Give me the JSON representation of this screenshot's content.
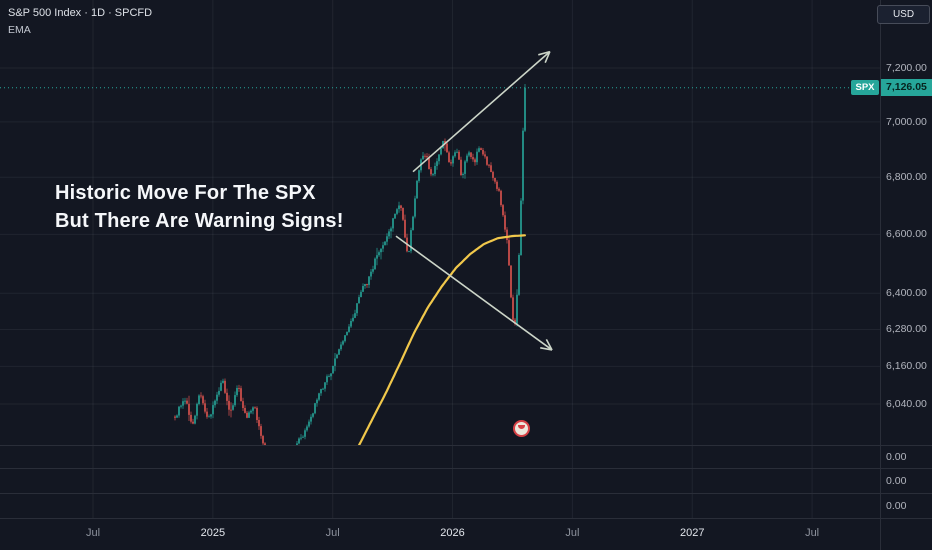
{
  "header": {
    "symbol_title": "S&P 500 Index · 1D · SPCFD",
    "indicator_label": "EMA",
    "currency_button": "USD"
  },
  "annotation": {
    "line1": "Historic Move For The SPX",
    "line2": "But There Are Warning Signs!"
  },
  "price_label": {
    "symbol": "SPX",
    "price": "7,126.05"
  },
  "price_axis": {
    "ticks": [
      {
        "value": 7200,
        "label": "7,200.00"
      },
      {
        "value": 7000,
        "label": "7,000.00"
      },
      {
        "value": 6800,
        "label": "6,800.00"
      },
      {
        "value": 6600,
        "label": "6,600.00"
      },
      {
        "value": 6400,
        "label": "6,400.00"
      },
      {
        "value": 6280,
        "label": "6,280.00"
      },
      {
        "value": 6160,
        "label": "6,160.00"
      },
      {
        "value": 6040,
        "label": "6,040.00"
      }
    ],
    "sub_pane_labels": [
      "0.00",
      "0.00",
      "0.00"
    ]
  },
  "time_axis": {
    "labels": [
      {
        "label": "Jul",
        "t": 2024.5,
        "emphasis": false
      },
      {
        "label": "2025",
        "t": 2025.0,
        "emphasis": true
      },
      {
        "label": "Jul",
        "t": 2025.5,
        "emphasis": false
      },
      {
        "label": "2026",
        "t": 2026.0,
        "emphasis": true
      },
      {
        "label": "Jul",
        "t": 2026.5,
        "emphasis": false
      },
      {
        "label": "2027",
        "t": 2027.0,
        "emphasis": true
      },
      {
        "label": "Jul",
        "t": 2027.5,
        "emphasis": false
      }
    ]
  },
  "colors": {
    "background": "#131722",
    "up": "#26a69a",
    "down": "#e0544f",
    "ema": "#f1c84b",
    "arrow": "#ccd5c8",
    "accent": "#26a69a",
    "text": "#d1d4dc",
    "muted": "#9598a1",
    "grid": "rgba(170,178,192,0.09)",
    "divider": "#2a2e39"
  },
  "chart_data": {
    "type": "candlestick",
    "title": "S&P 500 Index · 1D · SPCFD",
    "symbol": "SPX",
    "interval": "1D",
    "exchange": "SPCFD",
    "currency": "USD",
    "scale": "log",
    "current_price": 7126.05,
    "y_ticks": [
      7200,
      7000,
      6800,
      6600,
      6400,
      6280,
      6160,
      6040
    ],
    "x_tick_labels": [
      "Jul",
      "2025",
      "Jul",
      "2026",
      "Jul",
      "2027",
      "Jul"
    ],
    "price_path": [
      [
        2024.842,
        6000
      ],
      [
        2024.884,
        6060
      ],
      [
        2024.913,
        5970
      ],
      [
        2024.946,
        6080
      ],
      [
        2024.98,
        5985
      ],
      [
        2025.009,
        6045
      ],
      [
        2025.038,
        6120
      ],
      [
        2025.072,
        6010
      ],
      [
        2025.105,
        6100
      ],
      [
        2025.138,
        5990
      ],
      [
        2025.172,
        6045
      ],
      [
        2025.205,
        5920
      ],
      [
        2025.238,
        5890
      ],
      [
        2025.272,
        5850
      ],
      [
        2025.313,
        5855
      ],
      [
        2025.347,
        5910
      ],
      [
        2025.38,
        5950
      ],
      [
        2025.414,
        6010
      ],
      [
        2025.455,
        6090
      ],
      [
        2025.497,
        6150
      ],
      [
        2025.539,
        6240
      ],
      [
        2025.581,
        6310
      ],
      [
        2025.614,
        6400
      ],
      [
        2025.647,
        6440
      ],
      [
        2025.681,
        6520
      ],
      [
        2025.714,
        6560
      ],
      [
        2025.747,
        6640
      ],
      [
        2025.781,
        6720
      ],
      [
        2025.814,
        6515
      ],
      [
        2025.839,
        6700
      ],
      [
        2025.864,
        6860
      ],
      [
        2025.889,
        6890
      ],
      [
        2025.914,
        6790
      ],
      [
        2025.939,
        6880
      ],
      [
        2025.964,
        6940
      ],
      [
        2025.989,
        6840
      ],
      [
        2026.014,
        6910
      ],
      [
        2026.039,
        6800
      ],
      [
        2026.064,
        6890
      ],
      [
        2026.089,
        6850
      ],
      [
        2026.114,
        6910
      ],
      [
        2026.139,
        6860
      ],
      [
        2026.164,
        6820
      ],
      [
        2026.189,
        6760
      ],
      [
        2026.21,
        6680
      ],
      [
        2026.231,
        6550
      ],
      [
        2026.248,
        6320
      ],
      [
        2026.26,
        6300
      ],
      [
        2026.273,
        6450
      ],
      [
        2026.285,
        6700
      ],
      [
        2026.293,
        6950
      ],
      [
        2026.302,
        7126.05
      ]
    ],
    "ema_path": [
      [
        2025.606,
        5905
      ],
      [
        2025.664,
        5990
      ],
      [
        2025.722,
        6075
      ],
      [
        2025.781,
        6170
      ],
      [
        2025.839,
        6268
      ],
      [
        2025.898,
        6354
      ],
      [
        2025.956,
        6424
      ],
      [
        2026.014,
        6485
      ],
      [
        2026.073,
        6532
      ],
      [
        2026.131,
        6567
      ],
      [
        2026.189,
        6587
      ],
      [
        2026.248,
        6594
      ],
      [
        2026.302,
        6597
      ]
    ],
    "arrows": [
      {
        "from": [
          2025.835,
          6820
        ],
        "to": [
          2026.406,
          7262
        ],
        "direction": "up"
      },
      {
        "from": [
          2025.764,
          6594
        ],
        "to": [
          2026.415,
          6213
        ],
        "direction": "down"
      }
    ]
  }
}
